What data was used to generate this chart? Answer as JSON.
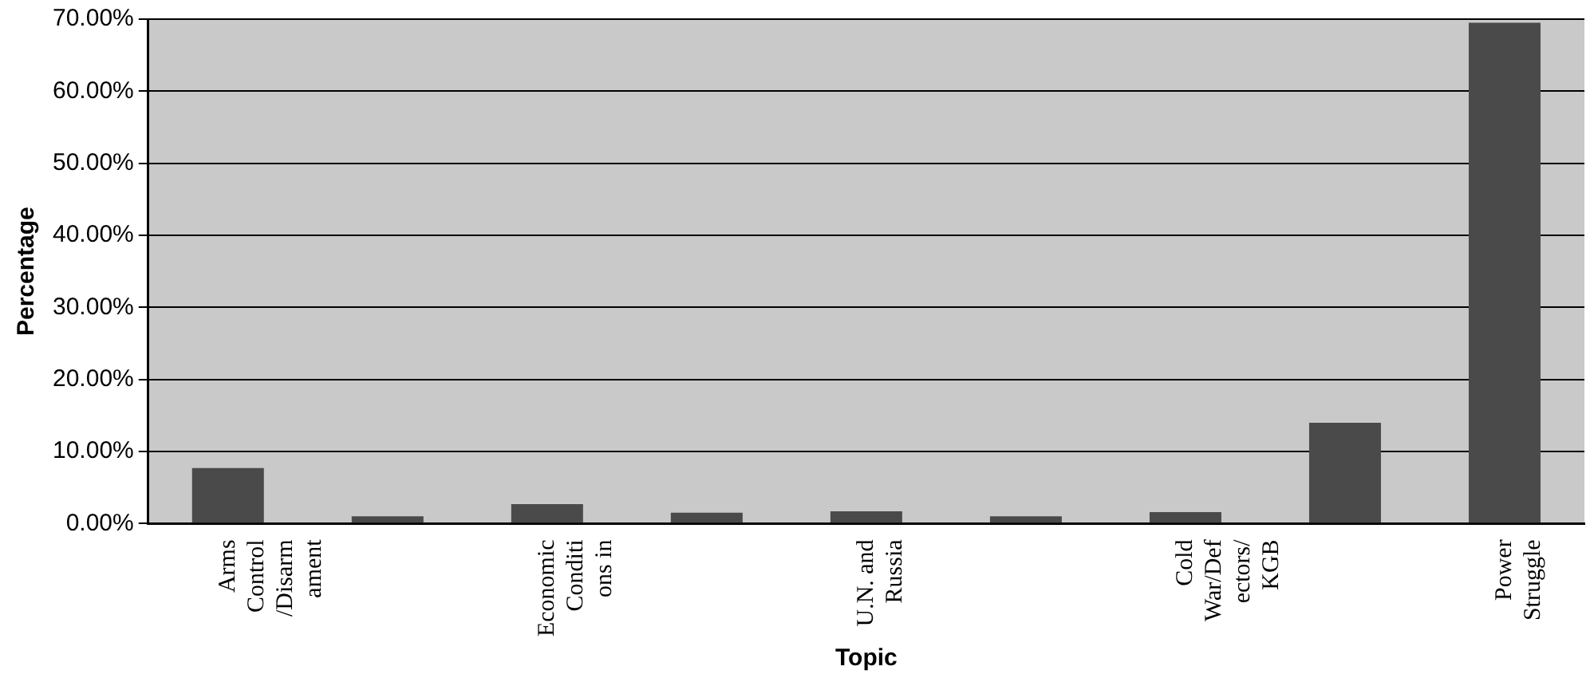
{
  "chart_data": {
    "type": "bar",
    "xlabel": "Topic",
    "ylabel": "Percentage",
    "categories": [
      "Arms Control/Disarmament",
      null,
      "Economic Conditions in",
      null,
      "U.N. and Russia",
      null,
      "Cold War/Defectors/KGB",
      null,
      "Power Struggle"
    ],
    "values": [
      7.7,
      1.0,
      2.7,
      1.5,
      1.7,
      1.0,
      1.6,
      14.0,
      69.5
    ],
    "color": "#4a4a4a",
    "ylim": [
      0,
      70
    ],
    "yticks": [
      {
        "value": 0,
        "label": "0.00%"
      },
      {
        "value": 10,
        "label": "10.00%"
      },
      {
        "value": 20,
        "label": "20.00%"
      },
      {
        "value": 30,
        "label": "30.00%"
      },
      {
        "value": 40,
        "label": "40.00%"
      },
      {
        "value": 50,
        "label": "50.00%"
      },
      {
        "value": 60,
        "label": "60.00%"
      },
      {
        "value": 70,
        "label": "70.00%"
      }
    ],
    "grid": "y",
    "legend": false
  }
}
